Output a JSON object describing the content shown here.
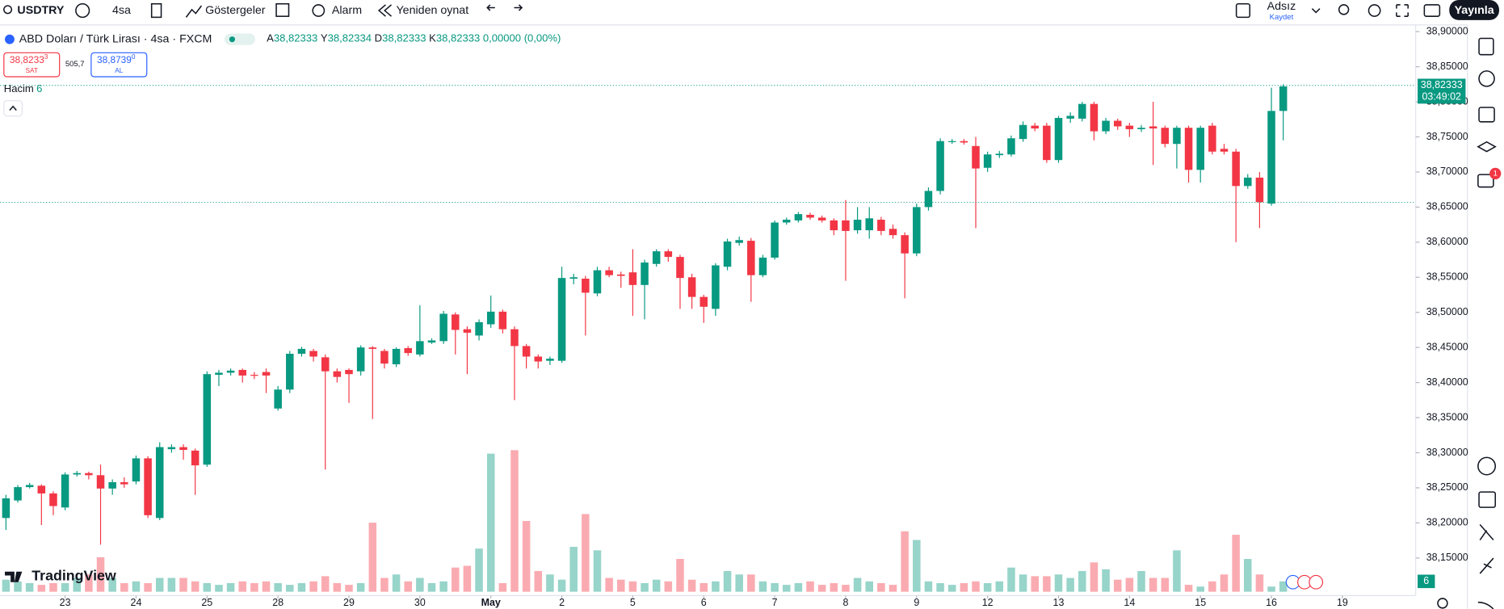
{
  "toolbar": {
    "symbol": "USDTRY",
    "interval": "4sa",
    "indicators": "Göstergeler",
    "alarm": "Alarm",
    "replay": "Yeniden oynat",
    "layout_name": "Adsız",
    "save": "Kaydet",
    "publish": "Yayınla"
  },
  "notification_count": "1",
  "logo": "TradingView",
  "chart_data": {
    "type": "candlestick",
    "title": "ABD Doları / Türk Lirası · 4sa · FXCM",
    "legend_values": [
      {
        "key": "A",
        "value": "38,82333"
      },
      {
        "key": "Y",
        "value": "38,82334"
      },
      {
        "key": "D",
        "value": "38,82333"
      },
      {
        "key": "K",
        "value": "38,82333"
      },
      {
        "key": "",
        "value": "0,00000 (0,00%)"
      }
    ],
    "sell": {
      "price": "38,8233",
      "price_small": "3",
      "label": "SAT"
    },
    "spread": "505,7",
    "buy": {
      "price": "38,8739",
      "price_small": "0",
      "label": "AL"
    },
    "volume_label": "Hacim",
    "volume_value": "6",
    "last_price": {
      "value": 38.82333,
      "label": "38,82333"
    },
    "countdown": "03:49:02",
    "up_color": "#089981",
    "down_color": "#f23645",
    "ylim": [
      38.091,
      38.915
    ],
    "yticks": [
      {
        "value": 38.9,
        "label": "38,90000"
      },
      {
        "value": 38.85,
        "label": "38,85000"
      },
      {
        "value": 38.8,
        "label": "38,80000"
      },
      {
        "value": 38.75,
        "label": "38,75000"
      },
      {
        "value": 38.7,
        "label": "38,70000"
      },
      {
        "value": 38.65,
        "label": "38,65000"
      },
      {
        "value": 38.6,
        "label": "38,60000"
      },
      {
        "value": 38.55,
        "label": "38,55000"
      },
      {
        "value": 38.5,
        "label": "38,50000"
      },
      {
        "value": 38.45,
        "label": "38,45000"
      },
      {
        "value": 38.4,
        "label": "38,40000"
      },
      {
        "value": 38.35,
        "label": "38,35000"
      },
      {
        "value": 38.3,
        "label": "38,30000"
      },
      {
        "value": 38.25,
        "label": "38,25000"
      },
      {
        "value": 38.2,
        "label": "38,20000"
      },
      {
        "value": 38.15,
        "label": "38,15000"
      }
    ],
    "xlim": [
      -0.5,
      119.2
    ],
    "xticks": [
      {
        "value": 5,
        "label": "23"
      },
      {
        "value": 11,
        "label": "24"
      },
      {
        "value": 17,
        "label": "25"
      },
      {
        "value": 23,
        "label": "28"
      },
      {
        "value": 29,
        "label": "29"
      },
      {
        "value": 35,
        "label": "30"
      },
      {
        "value": 41,
        "label": "May"
      },
      {
        "value": 47,
        "label": "2"
      },
      {
        "value": 53,
        "label": "5"
      },
      {
        "value": 59,
        "label": "6"
      },
      {
        "value": 65,
        "label": "7"
      },
      {
        "value": 71,
        "label": "8"
      },
      {
        "value": 77,
        "label": "9"
      },
      {
        "value": 83,
        "label": "12"
      },
      {
        "value": 89,
        "label": "13"
      },
      {
        "value": 95,
        "label": "14"
      },
      {
        "value": 101,
        "label": "15"
      },
      {
        "value": 107,
        "label": "16"
      },
      {
        "value": 113,
        "label": "19"
      }
    ],
    "volume_ylim": [
      0,
      120
    ],
    "grid": false,
    "candles": [
      {
        "o": 38.207,
        "h": 38.24,
        "l": 38.19,
        "c": 38.235,
        "v": 7
      },
      {
        "o": 38.232,
        "h": 38.254,
        "l": 38.229,
        "c": 38.251,
        "v": 6
      },
      {
        "o": 38.251,
        "h": 38.257,
        "l": 38.249,
        "c": 38.254,
        "v": 5
      },
      {
        "o": 38.253,
        "h": 38.255,
        "l": 38.197,
        "c": 38.242,
        "v": 4
      },
      {
        "o": 38.242,
        "h": 38.245,
        "l": 38.211,
        "c": 38.224,
        "v": 5
      },
      {
        "o": 38.222,
        "h": 38.272,
        "l": 38.218,
        "c": 38.269,
        "v": 5
      },
      {
        "o": 38.269,
        "h": 38.274,
        "l": 38.266,
        "c": 38.271,
        "v": 8
      },
      {
        "o": 38.271,
        "h": 38.273,
        "l": 38.262,
        "c": 38.268,
        "v": 10
      },
      {
        "o": 38.268,
        "h": 38.283,
        "l": 38.169,
        "c": 38.249,
        "v": 20
      },
      {
        "o": 38.249,
        "h": 38.262,
        "l": 38.24,
        "c": 38.258,
        "v": 8
      },
      {
        "o": 38.258,
        "h": 38.265,
        "l": 38.25,
        "c": 38.255,
        "v": 5
      },
      {
        "o": 38.259,
        "h": 38.296,
        "l": 38.255,
        "c": 38.292,
        "v": 6
      },
      {
        "o": 38.292,
        "h": 38.295,
        "l": 38.207,
        "c": 38.211,
        "v": 5
      },
      {
        "o": 38.207,
        "h": 38.315,
        "l": 38.204,
        "c": 38.308,
        "v": 8
      },
      {
        "o": 38.305,
        "h": 38.312,
        "l": 38.3,
        "c": 38.308,
        "v": 8
      },
      {
        "o": 38.308,
        "h": 38.312,
        "l": 38.29,
        "c": 38.304,
        "v": 8
      },
      {
        "o": 38.303,
        "h": 38.306,
        "l": 38.24,
        "c": 38.282,
        "v": 6
      },
      {
        "o": 38.283,
        "h": 38.416,
        "l": 38.28,
        "c": 38.412,
        "v": 5
      },
      {
        "o": 38.411,
        "h": 38.418,
        "l": 38.395,
        "c": 38.414,
        "v": 4
      },
      {
        "o": 38.414,
        "h": 38.42,
        "l": 38.41,
        "c": 38.417,
        "v": 5
      },
      {
        "o": 38.418,
        "h": 38.42,
        "l": 38.4,
        "c": 38.41,
        "v": 6
      },
      {
        "o": 38.411,
        "h": 38.415,
        "l": 38.405,
        "c": 38.41,
        "v": 5
      },
      {
        "o": 38.415,
        "h": 38.42,
        "l": 38.385,
        "c": 38.41,
        "v": 6
      },
      {
        "o": 38.363,
        "h": 38.395,
        "l": 38.36,
        "c": 38.39,
        "v": 5
      },
      {
        "o": 38.39,
        "h": 38.445,
        "l": 38.385,
        "c": 38.441,
        "v": 4
      },
      {
        "o": 38.441,
        "h": 38.451,
        "l": 38.437,
        "c": 38.448,
        "v": 5
      },
      {
        "o": 38.445,
        "h": 38.448,
        "l": 38.43,
        "c": 38.437,
        "v": 6
      },
      {
        "o": 38.436,
        "h": 38.44,
        "l": 38.276,
        "c": 38.416,
        "v": 9
      },
      {
        "o": 38.416,
        "h": 38.42,
        "l": 38.4,
        "c": 38.408,
        "v": 5
      },
      {
        "o": 38.418,
        "h": 38.42,
        "l": 38.371,
        "c": 38.412,
        "v": 4
      },
      {
        "o": 38.416,
        "h": 38.453,
        "l": 38.41,
        "c": 38.45,
        "v": 5
      },
      {
        "o": 38.45,
        "h": 38.452,
        "l": 38.348,
        "c": 38.448,
        "v": 40
      },
      {
        "o": 38.445,
        "h": 38.448,
        "l": 38.42,
        "c": 38.427,
        "v": 8
      },
      {
        "o": 38.426,
        "h": 38.45,
        "l": 38.422,
        "c": 38.448,
        "v": 10
      },
      {
        "o": 38.449,
        "h": 38.452,
        "l": 38.438,
        "c": 38.442,
        "v": 6
      },
      {
        "o": 38.44,
        "h": 38.51,
        "l": 38.437,
        "c": 38.459,
        "v": 8
      },
      {
        "o": 38.457,
        "h": 38.463,
        "l": 38.455,
        "c": 38.46,
        "v": 5
      },
      {
        "o": 38.459,
        "h": 38.502,
        "l": 38.455,
        "c": 38.498,
        "v": 6
      },
      {
        "o": 38.497,
        "h": 38.5,
        "l": 38.44,
        "c": 38.475,
        "v": 14
      },
      {
        "o": 38.476,
        "h": 38.48,
        "l": 38.412,
        "c": 38.471,
        "v": 15
      },
      {
        "o": 38.467,
        "h": 38.49,
        "l": 38.46,
        "c": 38.486,
        "v": 25
      },
      {
        "o": 38.483,
        "h": 38.524,
        "l": 38.478,
        "c": 38.501,
        "v": 80
      },
      {
        "o": 38.501,
        "h": 38.504,
        "l": 38.47,
        "c": 38.476,
        "v": 5
      },
      {
        "o": 38.476,
        "h": 38.48,
        "l": 38.375,
        "c": 38.452,
        "v": 82
      },
      {
        "o": 38.452,
        "h": 38.455,
        "l": 38.42,
        "c": 38.437,
        "v": 41
      },
      {
        "o": 38.437,
        "h": 38.44,
        "l": 38.42,
        "c": 38.43,
        "v": 12
      },
      {
        "o": 38.431,
        "h": 38.437,
        "l": 38.425,
        "c": 38.434,
        "v": 10
      },
      {
        "o": 38.431,
        "h": 38.565,
        "l": 38.428,
        "c": 38.549,
        "v": 7
      },
      {
        "o": 38.548,
        "h": 38.555,
        "l": 38.54,
        "c": 38.55,
        "v": 26
      },
      {
        "o": 38.548,
        "h": 38.552,
        "l": 38.467,
        "c": 38.528,
        "v": 45
      },
      {
        "o": 38.527,
        "h": 38.565,
        "l": 38.523,
        "c": 38.56,
        "v": 24
      },
      {
        "o": 38.56,
        "h": 38.565,
        "l": 38.55,
        "c": 38.553,
        "v": 8
      },
      {
        "o": 38.554,
        "h": 38.558,
        "l": 38.535,
        "c": 38.552,
        "v": 7
      },
      {
        "o": 38.557,
        "h": 38.59,
        "l": 38.495,
        "c": 38.539,
        "v": 6
      },
      {
        "o": 38.539,
        "h": 38.575,
        "l": 38.49,
        "c": 38.571,
        "v": 5
      },
      {
        "o": 38.569,
        "h": 38.59,
        "l": 38.565,
        "c": 38.587,
        "v": 7
      },
      {
        "o": 38.587,
        "h": 38.59,
        "l": 38.572,
        "c": 38.579,
        "v": 6
      },
      {
        "o": 38.579,
        "h": 38.582,
        "l": 38.505,
        "c": 38.549,
        "v": 19
      },
      {
        "o": 38.55,
        "h": 38.555,
        "l": 38.505,
        "c": 38.522,
        "v": 7
      },
      {
        "o": 38.522,
        "h": 38.525,
        "l": 38.485,
        "c": 38.508,
        "v": 5
      },
      {
        "o": 38.505,
        "h": 38.57,
        "l": 38.495,
        "c": 38.567,
        "v": 6
      },
      {
        "o": 38.565,
        "h": 38.605,
        "l": 38.56,
        "c": 38.601,
        "v": 12
      },
      {
        "o": 38.599,
        "h": 38.608,
        "l": 38.595,
        "c": 38.603,
        "v": 10
      },
      {
        "o": 38.602,
        "h": 38.606,
        "l": 38.515,
        "c": 38.553,
        "v": 10
      },
      {
        "o": 38.553,
        "h": 38.582,
        "l": 38.55,
        "c": 38.578,
        "v": 6
      },
      {
        "o": 38.578,
        "h": 38.631,
        "l": 38.575,
        "c": 38.628,
        "v": 5
      },
      {
        "o": 38.628,
        "h": 38.635,
        "l": 38.625,
        "c": 38.632,
        "v": 4
      },
      {
        "o": 38.631,
        "h": 38.643,
        "l": 38.628,
        "c": 38.64,
        "v": 5
      },
      {
        "o": 38.639,
        "h": 38.642,
        "l": 38.632,
        "c": 38.635,
        "v": 6
      },
      {
        "o": 38.635,
        "h": 38.638,
        "l": 38.628,
        "c": 38.631,
        "v": 4
      },
      {
        "o": 38.631,
        "h": 38.634,
        "l": 38.61,
        "c": 38.617,
        "v": 5
      },
      {
        "o": 38.631,
        "h": 38.66,
        "l": 38.545,
        "c": 38.616,
        "v": 4
      },
      {
        "o": 38.617,
        "h": 38.65,
        "l": 38.612,
        "c": 38.632,
        "v": 8
      },
      {
        "o": 38.617,
        "h": 38.65,
        "l": 38.605,
        "c": 38.634,
        "v": 6
      },
      {
        "o": 38.632,
        "h": 38.636,
        "l": 38.61,
        "c": 38.616,
        "v": 5
      },
      {
        "o": 38.619,
        "h": 38.625,
        "l": 38.605,
        "c": 38.61,
        "v": 4
      },
      {
        "o": 38.61,
        "h": 38.614,
        "l": 38.52,
        "c": 38.584,
        "v": 35
      },
      {
        "o": 38.584,
        "h": 38.655,
        "l": 38.58,
        "c": 38.65,
        "v": 30
      },
      {
        "o": 38.65,
        "h": 38.678,
        "l": 38.645,
        "c": 38.673,
        "v": 6
      },
      {
        "o": 38.673,
        "h": 38.748,
        "l": 38.668,
        "c": 38.744,
        "v": 5
      },
      {
        "o": 38.743,
        "h": 38.747,
        "l": 38.74,
        "c": 38.744,
        "v": 4
      },
      {
        "o": 38.744,
        "h": 38.747,
        "l": 38.739,
        "c": 38.742,
        "v": 5
      },
      {
        "o": 38.737,
        "h": 38.75,
        "l": 38.62,
        "c": 38.705,
        "v": 6
      },
      {
        "o": 38.706,
        "h": 38.729,
        "l": 38.7,
        "c": 38.725,
        "v": 5
      },
      {
        "o": 38.724,
        "h": 38.73,
        "l": 38.72,
        "c": 38.726,
        "v": 6
      },
      {
        "o": 38.725,
        "h": 38.752,
        "l": 38.722,
        "c": 38.748,
        "v": 14
      },
      {
        "o": 38.747,
        "h": 38.772,
        "l": 38.743,
        "c": 38.767,
        "v": 10
      },
      {
        "o": 38.766,
        "h": 38.77,
        "l": 38.758,
        "c": 38.762,
        "v": 9
      },
      {
        "o": 38.766,
        "h": 38.77,
        "l": 38.713,
        "c": 38.717,
        "v": 9
      },
      {
        "o": 38.717,
        "h": 38.78,
        "l": 38.713,
        "c": 38.777,
        "v": 10
      },
      {
        "o": 38.776,
        "h": 38.785,
        "l": 38.77,
        "c": 38.78,
        "v": 8
      },
      {
        "o": 38.776,
        "h": 38.8,
        "l": 38.772,
        "c": 38.797,
        "v": 12
      },
      {
        "o": 38.797,
        "h": 38.8,
        "l": 38.745,
        "c": 38.758,
        "v": 17
      },
      {
        "o": 38.758,
        "h": 38.777,
        "l": 38.754,
        "c": 38.773,
        "v": 13
      },
      {
        "o": 38.773,
        "h": 38.776,
        "l": 38.76,
        "c": 38.765,
        "v": 7
      },
      {
        "o": 38.766,
        "h": 38.77,
        "l": 38.75,
        "c": 38.761,
        "v": 8
      },
      {
        "o": 38.761,
        "h": 38.767,
        "l": 38.757,
        "c": 38.763,
        "v": 12
      },
      {
        "o": 38.765,
        "h": 38.8,
        "l": 38.71,
        "c": 38.762,
        "v": 8
      },
      {
        "o": 38.763,
        "h": 38.766,
        "l": 38.735,
        "c": 38.74,
        "v": 8
      },
      {
        "o": 38.74,
        "h": 38.766,
        "l": 38.705,
        "c": 38.763,
        "v": 24
      },
      {
        "o": 38.763,
        "h": 38.766,
        "l": 38.685,
        "c": 38.703,
        "v": 4
      },
      {
        "o": 38.703,
        "h": 38.766,
        "l": 38.685,
        "c": 38.763,
        "v": 3
      },
      {
        "o": 38.766,
        "h": 38.77,
        "l": 38.725,
        "c": 38.729,
        "v": 6
      },
      {
        "o": 38.733,
        "h": 38.74,
        "l": 38.725,
        "c": 38.729,
        "v": 10
      },
      {
        "o": 38.729,
        "h": 38.733,
        "l": 38.6,
        "c": 38.68,
        "v": 33
      },
      {
        "o": 38.68,
        "h": 38.697,
        "l": 38.676,
        "c": 38.692,
        "v": 19
      },
      {
        "o": 38.692,
        "h": 38.7,
        "l": 38.62,
        "c": 38.657,
        "v": 10
      },
      {
        "o": 38.655,
        "h": 38.82,
        "l": 38.652,
        "c": 38.787,
        "v": 3
      },
      {
        "o": 38.787,
        "h": 38.825,
        "l": 38.745,
        "c": 38.822,
        "v": 6
      }
    ]
  }
}
